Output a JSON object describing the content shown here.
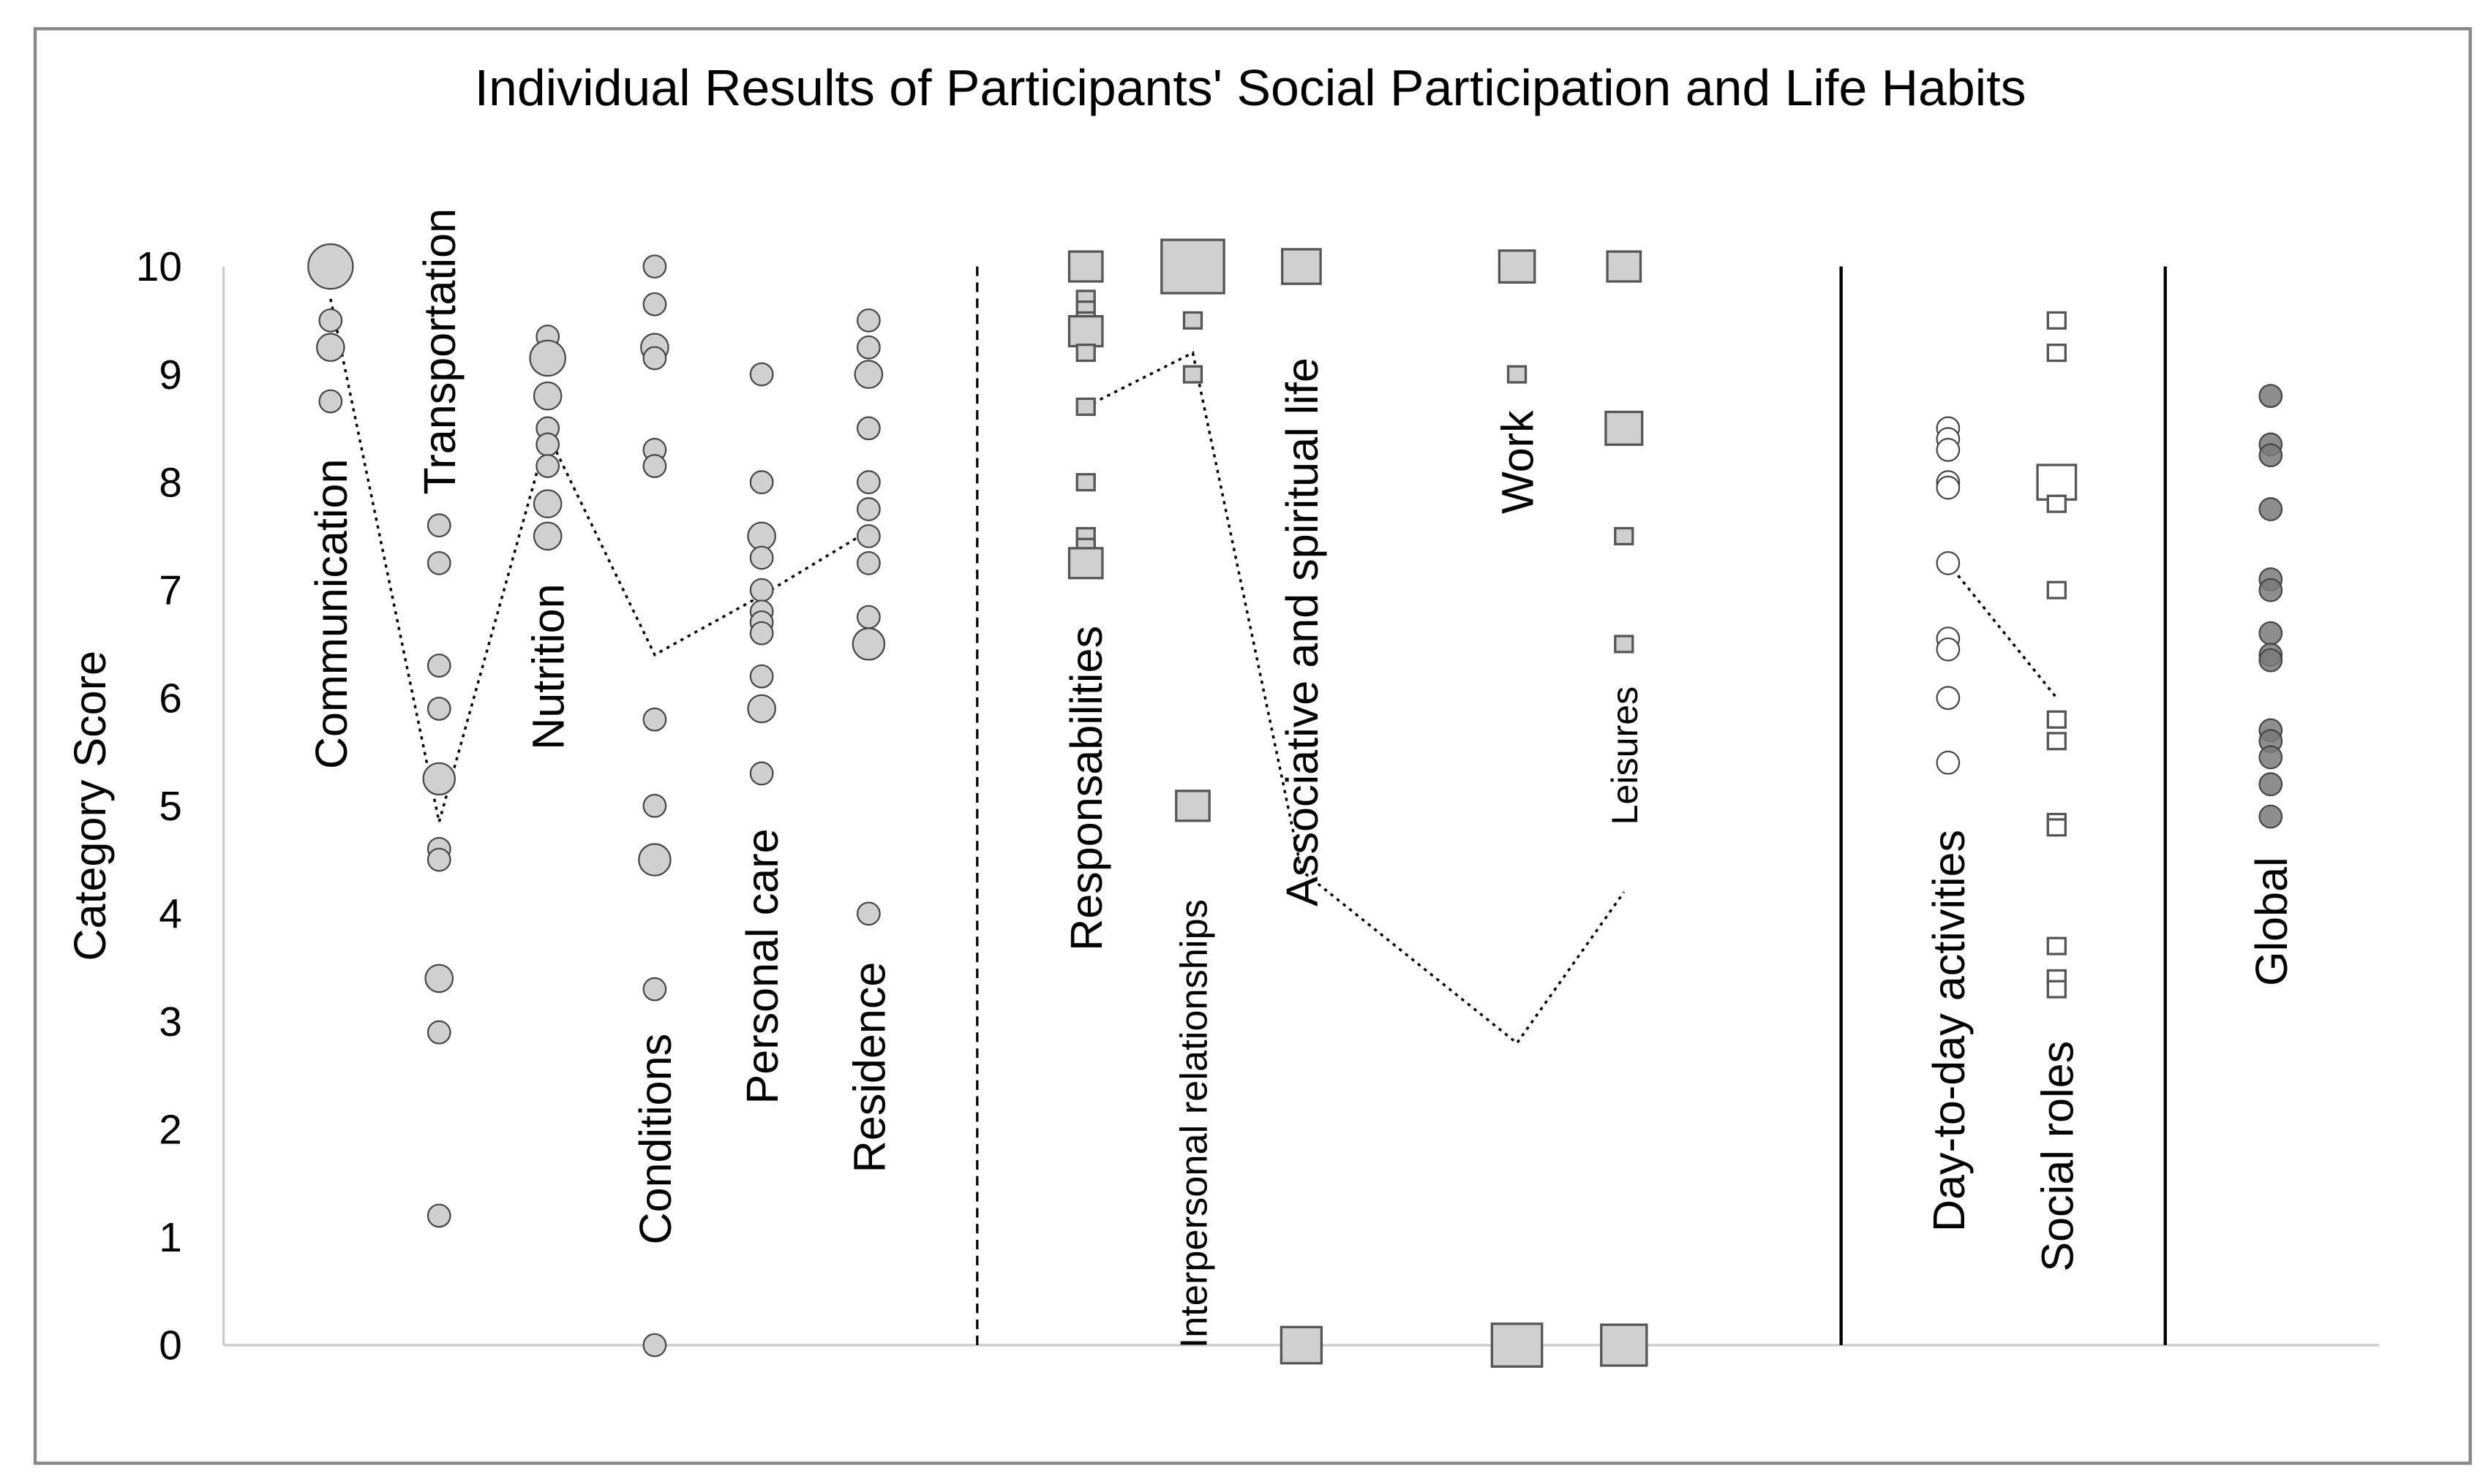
{
  "chart_data": {
    "type": "scatter",
    "title": "Individual Results of Participants' Social Participation and Life Habits",
    "ylabel": "Category Score",
    "xlabel": "",
    "ylim": [
      0,
      10
    ],
    "yticks": [
      "0",
      "1",
      "2",
      "3",
      "4",
      "5",
      "6",
      "7",
      "8",
      "9",
      "10"
    ],
    "grid": false,
    "legend": "none",
    "colors": {
      "marker_fill": "#d0d0d0",
      "marker_stroke": "#444444",
      "open_fill": "#ffffff",
      "global_fill": "#7a7a7a"
    },
    "groups": [
      {
        "categories": [
          "Communication",
          "Transportation",
          "Nutrition",
          "Conditions",
          "Personal care",
          "Residence"
        ],
        "marker": "circle",
        "separator_after": "dashed"
      },
      {
        "categories": [
          "Responsabilities",
          "Interpersonal relationships",
          "Associative and spiritual life",
          "Work",
          "Leisures"
        ],
        "marker": "square",
        "separator_after": "solid"
      },
      {
        "categories": [
          "Day-to-day activities",
          "Social roles"
        ],
        "marker": "mixed-open",
        "separator_after": "solid"
      },
      {
        "categories": [
          "Global"
        ],
        "marker": "circle-dark"
      }
    ],
    "series": [
      {
        "name": "Communication",
        "marker": "circle",
        "mean": 9.7,
        "points": [
          {
            "y": 10,
            "n": 4
          },
          {
            "y": 9.5,
            "n": 1
          },
          {
            "y": 9.25,
            "n": 1.5
          },
          {
            "y": 8.75,
            "n": 1
          }
        ]
      },
      {
        "name": "Transportation",
        "marker": "circle",
        "mean": 4.85,
        "points": [
          {
            "y": 7.6,
            "n": 1
          },
          {
            "y": 7.25,
            "n": 1
          },
          {
            "y": 6.3,
            "n": 1
          },
          {
            "y": 5.9,
            "n": 1
          },
          {
            "y": 5.25,
            "n": 2
          },
          {
            "y": 4.6,
            "n": 1
          },
          {
            "y": 4.5,
            "n": 1
          },
          {
            "y": 3.4,
            "n": 1.5
          },
          {
            "y": 2.9,
            "n": 1
          },
          {
            "y": 1.2,
            "n": 1
          }
        ]
      },
      {
        "name": "Nutrition",
        "marker": "circle",
        "mean": 8.45,
        "points": [
          {
            "y": 9.35,
            "n": 1
          },
          {
            "y": 9.15,
            "n": 2.5
          },
          {
            "y": 8.8,
            "n": 1.5
          },
          {
            "y": 8.5,
            "n": 1
          },
          {
            "y": 8.35,
            "n": 1
          },
          {
            "y": 8.15,
            "n": 1
          },
          {
            "y": 7.8,
            "n": 1.5
          },
          {
            "y": 7.5,
            "n": 1.5
          }
        ]
      },
      {
        "name": "Conditions",
        "marker": "circle",
        "mean": 6.4,
        "points": [
          {
            "y": 10,
            "n": 1
          },
          {
            "y": 9.65,
            "n": 1
          },
          {
            "y": 9.25,
            "n": 1.5
          },
          {
            "y": 9.15,
            "n": 1
          },
          {
            "y": 8.3,
            "n": 1
          },
          {
            "y": 8.15,
            "n": 1
          },
          {
            "y": 5.8,
            "n": 1
          },
          {
            "y": 5.0,
            "n": 1
          },
          {
            "y": 4.5,
            "n": 2
          },
          {
            "y": 3.3,
            "n": 1
          },
          {
            "y": 0,
            "n": 1
          }
        ]
      },
      {
        "name": "Personal care",
        "marker": "circle",
        "mean": 6.95,
        "points": [
          {
            "y": 9.0,
            "n": 1
          },
          {
            "y": 8.0,
            "n": 1
          },
          {
            "y": 7.5,
            "n": 1.5
          },
          {
            "y": 7.3,
            "n": 1
          },
          {
            "y": 7.0,
            "n": 1
          },
          {
            "y": 6.8,
            "n": 1
          },
          {
            "y": 6.7,
            "n": 1
          },
          {
            "y": 6.6,
            "n": 1
          },
          {
            "y": 6.2,
            "n": 1
          },
          {
            "y": 5.9,
            "n": 1.5
          },
          {
            "y": 5.3,
            "n": 1
          }
        ]
      },
      {
        "name": "Residence",
        "marker": "circle",
        "mean": 7.55,
        "points": [
          {
            "y": 9.5,
            "n": 1
          },
          {
            "y": 9.25,
            "n": 1
          },
          {
            "y": 9.0,
            "n": 1.5
          },
          {
            "y": 8.5,
            "n": 1
          },
          {
            "y": 8.0,
            "n": 1
          },
          {
            "y": 7.75,
            "n": 1
          },
          {
            "y": 7.5,
            "n": 1
          },
          {
            "y": 7.25,
            "n": 1
          },
          {
            "y": 6.75,
            "n": 1
          },
          {
            "y": 6.5,
            "n": 2
          },
          {
            "y": 4.0,
            "n": 1
          }
        ]
      },
      {
        "name": "Responsabilities",
        "marker": "square",
        "mean": 8.7,
        "points": [
          {
            "y": 10,
            "n": 1.5
          },
          {
            "y": 9.7,
            "n": 1
          },
          {
            "y": 9.6,
            "n": 1
          },
          {
            "y": 9.5,
            "n": 1
          },
          {
            "y": 9.4,
            "n": 1.5
          },
          {
            "y": 9.2,
            "n": 1
          },
          {
            "y": 8.7,
            "n": 1
          },
          {
            "y": 8.0,
            "n": 1
          },
          {
            "y": 7.5,
            "n": 1
          },
          {
            "y": 7.4,
            "n": 1
          },
          {
            "y": 7.25,
            "n": 1.5
          }
        ]
      },
      {
        "name": "Interpersonal relationships",
        "marker": "square",
        "mean": 9.2,
        "points": [
          {
            "y": 10,
            "n": 4
          },
          {
            "y": 9.5,
            "n": 1
          },
          {
            "y": 9.0,
            "n": 1
          },
          {
            "y": 5.0,
            "n": 1.5
          }
        ]
      },
      {
        "name": "Associative and spiritual life",
        "marker": "square",
        "mean": 4.4,
        "points": [
          {
            "y": 10,
            "n": 2
          },
          {
            "y": 0,
            "n": 2.2
          }
        ]
      },
      {
        "name": "Work",
        "marker": "square",
        "mean": 2.8,
        "points": [
          {
            "y": 10,
            "n": 1.7
          },
          {
            "y": 9.0,
            "n": 1
          },
          {
            "y": 0,
            "n": 3.4
          }
        ]
      },
      {
        "name": "Leisures",
        "marker": "square",
        "mean": 4.2,
        "points": [
          {
            "y": 10,
            "n": 1.5
          },
          {
            "y": 8.5,
            "n": 1.8
          },
          {
            "y": 7.5,
            "n": 1
          },
          {
            "y": 6.5,
            "n": 1
          },
          {
            "y": 0,
            "n": 2.8
          }
        ]
      },
      {
        "name": "Day-to-day activities",
        "marker": "circle-open",
        "mean": 7.25,
        "points": [
          {
            "y": 8.5,
            "n": 1
          },
          {
            "y": 8.4,
            "n": 1
          },
          {
            "y": 8.3,
            "n": 1
          },
          {
            "y": 8.0,
            "n": 1
          },
          {
            "y": 7.95,
            "n": 1
          },
          {
            "y": 7.25,
            "n": 1
          },
          {
            "y": 6.55,
            "n": 1
          },
          {
            "y": 6.45,
            "n": 1
          },
          {
            "y": 6.0,
            "n": 1
          },
          {
            "y": 5.4,
            "n": 1
          }
        ]
      },
      {
        "name": "Social roles",
        "marker": "square-open",
        "mean": 6.0,
        "points": [
          {
            "y": 9.5,
            "n": 1
          },
          {
            "y": 9.2,
            "n": 1
          },
          {
            "y": 8.0,
            "n": 2
          },
          {
            "y": 7.8,
            "n": 1
          },
          {
            "y": 7.0,
            "n": 1
          },
          {
            "y": 5.8,
            "n": 1
          },
          {
            "y": 5.6,
            "n": 1
          },
          {
            "y": 4.85,
            "n": 1
          },
          {
            "y": 4.8,
            "n": 1
          },
          {
            "y": 3.7,
            "n": 1
          },
          {
            "y": 3.4,
            "n": 1
          },
          {
            "y": 3.3,
            "n": 1
          }
        ]
      },
      {
        "name": "Global",
        "marker": "circle-dark",
        "mean": null,
        "points": [
          {
            "y": 8.8,
            "n": 1
          },
          {
            "y": 8.35,
            "n": 1
          },
          {
            "y": 8.25,
            "n": 1
          },
          {
            "y": 7.75,
            "n": 1
          },
          {
            "y": 7.1,
            "n": 1
          },
          {
            "y": 7.0,
            "n": 1
          },
          {
            "y": 6.6,
            "n": 1
          },
          {
            "y": 6.4,
            "n": 1
          },
          {
            "y": 6.35,
            "n": 1
          },
          {
            "y": 5.7,
            "n": 1
          },
          {
            "y": 5.6,
            "n": 1
          },
          {
            "y": 5.45,
            "n": 1
          },
          {
            "y": 5.2,
            "n": 1
          },
          {
            "y": 4.9,
            "n": 1
          }
        ]
      }
    ],
    "mean_line_groups": [
      [
        0,
        1,
        2,
        3,
        4,
        5
      ],
      [
        6,
        7,
        8,
        9,
        10
      ],
      [
        11,
        12
      ]
    ]
  }
}
